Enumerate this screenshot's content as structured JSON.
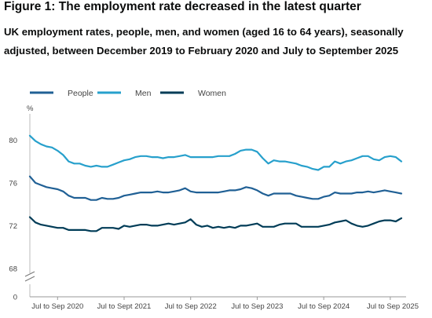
{
  "figure": {
    "title": "Figure 1: The employment rate decreased in the latest quarter",
    "subtitle": "UK employment rates, people, men, and women (aged 16 to 64 years), seasonally adjusted, between December 2019 to February 2020 and July to September 2025"
  },
  "chart_data": {
    "type": "line",
    "ylabel": "%",
    "ylim": [
      68,
      82
    ],
    "y_ticks": [
      "0",
      "68",
      "72",
      "76",
      "80"
    ],
    "x_ticks": [
      "Jul to Sep 2020",
      "Jul to Sept 2021",
      "Jul to Sep 2022",
      "Jul to Sep 2023",
      "Jul to Sep 2024",
      "Jul to Sep 2025"
    ],
    "axis_break": true,
    "grid": false,
    "legend_position": "top",
    "colors": {
      "People": "#206095",
      "Men": "#27a0cc",
      "Women": "#003c57"
    },
    "x_start": "Dec to Feb 2020",
    "x_count": 68,
    "series": [
      {
        "name": "People",
        "values": [
          76.6,
          76.0,
          75.8,
          75.6,
          75.5,
          75.4,
          75.2,
          74.8,
          74.6,
          74.6,
          74.6,
          74.4,
          74.4,
          74.6,
          74.5,
          74.5,
          74.6,
          74.8,
          74.9,
          75.0,
          75.1,
          75.1,
          75.1,
          75.2,
          75.1,
          75.1,
          75.2,
          75.3,
          75.5,
          75.2,
          75.1,
          75.1,
          75.1,
          75.1,
          75.1,
          75.2,
          75.3,
          75.3,
          75.4,
          75.6,
          75.5,
          75.3,
          75.0,
          74.8,
          75.0,
          75.0,
          75.0,
          75.0,
          74.8,
          74.7,
          74.6,
          74.5,
          74.5,
          74.7,
          74.8,
          75.1,
          75.0,
          75.0,
          75.0,
          75.1,
          75.1,
          75.2,
          75.1,
          75.2,
          75.3,
          75.2,
          75.1,
          75.0
        ]
      },
      {
        "name": "Men",
        "values": [
          80.4,
          79.9,
          79.6,
          79.4,
          79.3,
          79.0,
          78.6,
          78.0,
          77.8,
          77.8,
          77.6,
          77.5,
          77.6,
          77.5,
          77.5,
          77.7,
          77.9,
          78.1,
          78.2,
          78.4,
          78.5,
          78.5,
          78.4,
          78.4,
          78.3,
          78.4,
          78.4,
          78.5,
          78.6,
          78.4,
          78.4,
          78.4,
          78.4,
          78.4,
          78.5,
          78.5,
          78.5,
          78.7,
          79.0,
          79.1,
          79.1,
          78.9,
          78.3,
          77.8,
          78.1,
          78.0,
          78.0,
          77.9,
          77.8,
          77.6,
          77.5,
          77.3,
          77.2,
          77.5,
          77.5,
          78.0,
          77.8,
          78.0,
          78.1,
          78.3,
          78.5,
          78.5,
          78.2,
          78.1,
          78.4,
          78.5,
          78.4,
          78.0
        ]
      },
      {
        "name": "Women",
        "values": [
          72.8,
          72.3,
          72.1,
          72.0,
          71.9,
          71.8,
          71.8,
          71.6,
          71.6,
          71.6,
          71.6,
          71.5,
          71.5,
          71.8,
          71.8,
          71.8,
          71.7,
          72.0,
          71.9,
          72.0,
          72.1,
          72.1,
          72.0,
          72.0,
          72.1,
          72.2,
          72.1,
          72.2,
          72.3,
          72.6,
          72.1,
          71.9,
          72.0,
          71.8,
          71.9,
          71.8,
          71.9,
          71.8,
          72.0,
          72.0,
          72.1,
          72.2,
          71.9,
          71.9,
          71.9,
          72.1,
          72.2,
          72.2,
          72.2,
          71.9,
          71.9,
          71.9,
          71.9,
          72.0,
          72.1,
          72.3,
          72.4,
          72.5,
          72.2,
          72.0,
          71.9,
          72.0,
          72.2,
          72.4,
          72.5,
          72.5,
          72.4,
          72.7
        ]
      }
    ]
  }
}
